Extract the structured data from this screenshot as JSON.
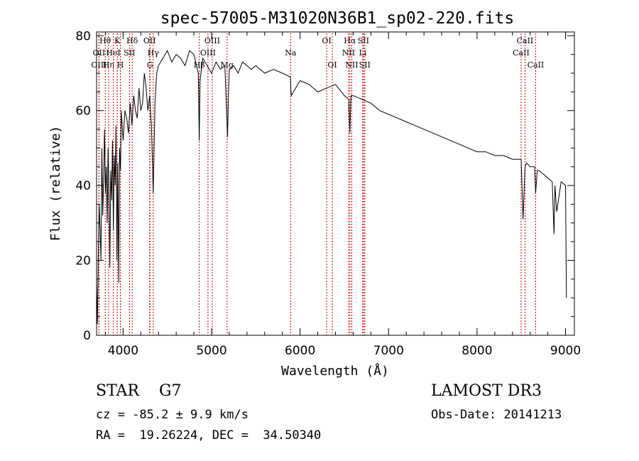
{
  "chart_data": {
    "type": "line",
    "title": "spec-57005-M31020N36B1_sp02-220.fits",
    "xlabel": "Wavelength (Å)",
    "ylabel": "Flux (relative)",
    "xlim": [
      3700,
      9100
    ],
    "ylim": [
      0,
      81
    ],
    "x_ticks": [
      4000,
      5000,
      6000,
      7000,
      8000,
      9000
    ],
    "x_tick_labels": [
      "4000",
      "5000",
      "6000",
      "7000",
      "8000",
      "9000"
    ],
    "y_ticks": [
      0,
      20,
      40,
      60,
      80
    ],
    "y_tick_labels": [
      "0",
      "20",
      "40",
      "60",
      "80"
    ],
    "series": [
      {
        "name": "flux",
        "x": [
          3700,
          3710,
          3720,
          3730,
          3740,
          3750,
          3760,
          3770,
          3780,
          3790,
          3800,
          3810,
          3820,
          3830,
          3840,
          3850,
          3860,
          3870,
          3880,
          3890,
          3900,
          3910,
          3920,
          3930,
          3940,
          3950,
          3960,
          3970,
          3980,
          3990,
          4000,
          4020,
          4040,
          4060,
          4080,
          4100,
          4120,
          4140,
          4160,
          4180,
          4200,
          4220,
          4240,
          4260,
          4280,
          4300,
          4320,
          4340,
          4360,
          4380,
          4400,
          4450,
          4500,
          4550,
          4600,
          4650,
          4700,
          4750,
          4800,
          4850,
          4860,
          4870,
          4900,
          4950,
          5000,
          5050,
          5100,
          5150,
          5170,
          5180,
          5190,
          5200,
          5250,
          5300,
          5350,
          5400,
          5450,
          5500,
          5600,
          5700,
          5800,
          5890,
          5900,
          6000,
          6100,
          6200,
          6300,
          6400,
          6500,
          6550,
          6563,
          6575,
          6600,
          6700,
          6800,
          6900,
          7000,
          7100,
          7200,
          7300,
          7400,
          7500,
          7600,
          7700,
          7800,
          7900,
          8000,
          8100,
          8200,
          8300,
          8400,
          8498,
          8520,
          8542,
          8560,
          8600,
          8650,
          8662,
          8680,
          8700,
          8750,
          8800,
          8850,
          8870,
          8880,
          8900,
          8950,
          9000,
          9010
        ],
        "values": [
          14,
          3,
          22,
          35,
          28,
          20,
          50,
          32,
          42,
          55,
          38,
          45,
          30,
          50,
          40,
          18,
          44,
          36,
          52,
          28,
          48,
          40,
          56,
          20,
          46,
          14,
          50,
          44,
          60,
          56,
          52,
          60,
          58,
          54,
          62,
          56,
          64,
          60,
          58,
          66,
          60,
          62,
          70,
          66,
          60,
          64,
          56,
          38,
          62,
          70,
          72,
          74,
          76,
          73,
          75,
          74,
          72,
          76,
          75,
          70,
          52,
          68,
          74,
          72,
          70,
          73,
          71,
          72,
          60,
          53,
          64,
          71,
          72,
          70,
          73,
          72,
          71,
          72,
          70,
          71,
          70,
          69,
          64,
          68,
          67,
          65,
          66,
          67,
          64,
          63,
          54,
          64,
          64,
          63,
          62,
          60,
          59,
          58,
          57,
          56,
          55,
          54,
          53,
          52,
          51,
          50,
          49,
          49,
          48,
          48,
          47,
          47,
          31,
          45,
          46,
          45,
          45,
          38,
          44,
          44,
          43,
          42,
          41,
          27,
          40,
          33,
          41,
          40,
          10
        ],
        "color": "#000000"
      }
    ],
    "lines": [
      {
        "label": "Hθ",
        "x": 3798,
        "row": 0
      },
      {
        "label": "OII",
        "x": 3727,
        "row": 1
      },
      {
        "label": "OIII",
        "x": 3727,
        "row": 2
      },
      {
        "label": "Hη",
        "x": 3835,
        "row": 2
      },
      {
        "label": "HeI",
        "x": 3889,
        "row": 1
      },
      {
        "label": "K",
        "x": 3934,
        "row": 0
      },
      {
        "label": "H",
        "x": 3969,
        "row": 2
      },
      {
        "label": "SII",
        "x": 4072,
        "row": 1
      },
      {
        "label": "Hδ",
        "x": 4102,
        "row": 0
      },
      {
        "label": "OII",
        "x": 4300,
        "row": 0
      },
      {
        "label": "Hγ",
        "x": 4340,
        "row": 1
      },
      {
        "label": "G",
        "x": 4304,
        "row": 2
      },
      {
        "label": "OIII",
        "x": 5007,
        "row": 0
      },
      {
        "label": "OIII",
        "x": 4959,
        "row": 1
      },
      {
        "label": "Hβ",
        "x": 4861,
        "row": 2
      },
      {
        "label": "Mg",
        "x": 5175,
        "row": 2
      },
      {
        "label": "Na",
        "x": 5893,
        "row": 1
      },
      {
        "label": "OI",
        "x": 6300,
        "row": 0
      },
      {
        "label": "OI",
        "x": 6364,
        "row": 2
      },
      {
        "label": "Hα",
        "x": 6563,
        "row": 0
      },
      {
        "label": "SII",
        "x": 6716,
        "row": 0
      },
      {
        "label": "NII",
        "x": 6548,
        "row": 1
      },
      {
        "label": "Li",
        "x": 6708,
        "row": 1
      },
      {
        "label": "NII",
        "x": 6584,
        "row": 2
      },
      {
        "label": "SII",
        "x": 6731,
        "row": 2
      },
      {
        "label": "CaII",
        "x": 8542,
        "row": 0
      },
      {
        "label": "CaII",
        "x": 8498,
        "row": 1
      },
      {
        "label": "CaII",
        "x": 8662,
        "row": 2
      }
    ]
  },
  "info": {
    "class": "STAR",
    "subclass": "G7",
    "survey": "LAMOST DR3",
    "cz": "cz = -85.2 ± 9.9 km/s",
    "obs_date": "Obs-Date: 20141213",
    "radec": "RA =  19.26224, DEC =  34.50340"
  }
}
